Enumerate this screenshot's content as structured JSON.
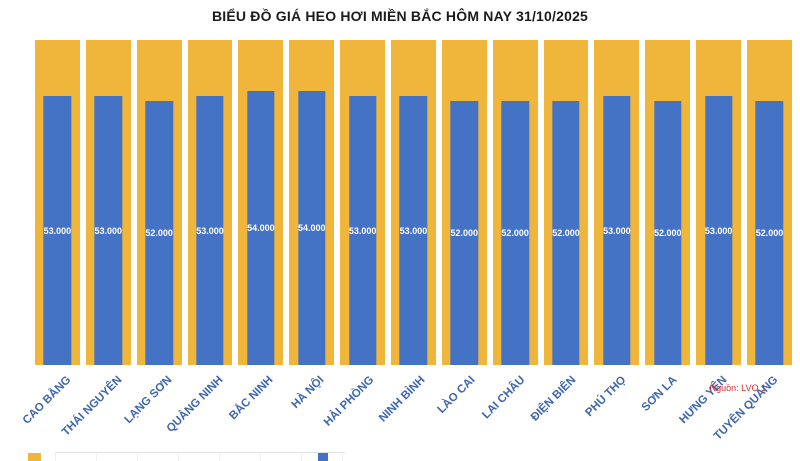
{
  "title": "BIỂU ĐỒ GIÁ HEO HƠI MIỀN BẮC HÔM NAY 31/10/2025",
  "watermark": "Nguồn: LVO 1",
  "chart_data": {
    "type": "bar",
    "title": "BIỂU ĐỒ GIÁ HEO HƠI MIỀN BẮC HÔM NAY 31/10/2025",
    "categories": [
      "CAO BẰNG",
      "THÁI NGUYÊN",
      "LẠNG SƠN",
      "QUẢNG NINH",
      "BẮC NINH",
      "HÀ NỘI",
      "HẢI PHÒNG",
      "NINH BÌNH",
      "LÀO CAI",
      "LAI CHÂU",
      "ĐIỆN BIÊN",
      "PHÚ THỌ",
      "SƠN LA",
      "HƯNG YÊN",
      "TUYÊN QUANG"
    ],
    "values": [
      53000,
      53000,
      52000,
      53000,
      54000,
      54000,
      53000,
      53000,
      52000,
      52000,
      52000,
      53000,
      52000,
      53000,
      52000
    ],
    "value_labels": [
      "53.000",
      "53.000",
      "52.000",
      "53.000",
      "54.000",
      "54.000",
      "53.000",
      "53.000",
      "52.000",
      "52.000",
      "52.000",
      "53.000",
      "52.000",
      "53.000",
      "52.000"
    ],
    "xlabel": "",
    "ylabel": "",
    "ylim": [
      0,
      64000
    ],
    "grid": false,
    "legend": "none",
    "colors": {
      "background_bar": "#F0B63C",
      "value_bar": "#4472C4",
      "label_text": "#3E66AE",
      "value_text": "#FFFFFF"
    }
  }
}
